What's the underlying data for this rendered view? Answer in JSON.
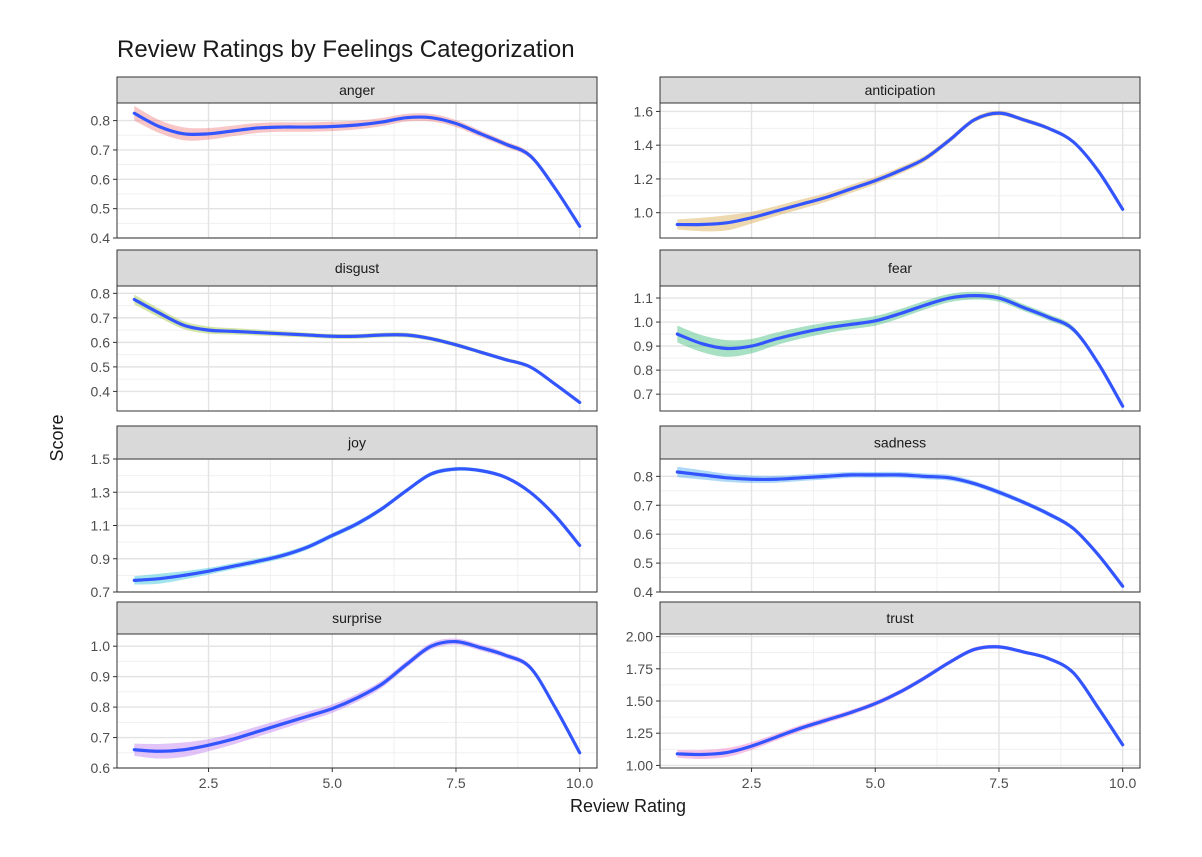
{
  "chart_data": {
    "type": "line",
    "title": "Review Ratings by Feelings Categorization",
    "xlabel": "Review Rating",
    "ylabel": "Score",
    "layout": "facet-wrap",
    "grid": true,
    "legend": "none",
    "x_ticks": [
      "2.5",
      "5.0",
      "7.5",
      "10.0"
    ],
    "xlim": [
      0.65,
      10.35
    ],
    "line_color": "#3355ff",
    "ribbon_opacity": 0.45,
    "panels": [
      {
        "name": "anger",
        "ribbon_color": "#f08080",
        "ylim": [
          0.4,
          0.86
        ],
        "y_ticks": [
          0.4,
          0.5,
          0.6,
          0.7,
          0.8
        ],
        "y_tick_labels": [
          "0.4",
          "0.5",
          "0.6",
          "0.7",
          "0.8"
        ],
        "x": [
          1,
          1.5,
          2,
          2.5,
          3,
          3.5,
          4,
          4.5,
          5,
          5.5,
          6,
          6.5,
          7,
          7.5,
          8,
          8.5,
          9,
          9.5,
          10
        ],
        "y": [
          0.825,
          0.78,
          0.755,
          0.755,
          0.765,
          0.775,
          0.778,
          0.778,
          0.78,
          0.785,
          0.795,
          0.81,
          0.81,
          0.79,
          0.755,
          0.72,
          0.68,
          0.57,
          0.44
        ],
        "band": [
          0.025,
          0.022,
          0.022,
          0.02,
          0.018,
          0.017,
          0.016,
          0.016,
          0.016,
          0.015,
          0.014,
          0.013,
          0.013,
          0.012,
          0.011,
          0.01,
          0.009,
          0.006,
          0.004
        ]
      },
      {
        "name": "anticipation",
        "ribbon_color": "#d9a84e",
        "ylim": [
          0.85,
          1.65
        ],
        "y_ticks": [
          1.0,
          1.2,
          1.4,
          1.6
        ],
        "y_tick_labels": [
          "1.0",
          "1.2",
          "1.4",
          "1.6"
        ],
        "x": [
          1,
          1.5,
          2,
          2.5,
          3,
          3.5,
          4,
          4.5,
          5,
          5.5,
          6,
          6.5,
          7,
          7.5,
          8,
          8.5,
          9,
          9.5,
          10
        ],
        "y": [
          0.93,
          0.93,
          0.94,
          0.97,
          1.01,
          1.05,
          1.09,
          1.14,
          1.19,
          1.25,
          1.32,
          1.43,
          1.55,
          1.59,
          1.55,
          1.5,
          1.42,
          1.25,
          1.02
        ],
        "band": [
          0.03,
          0.04,
          0.045,
          0.035,
          0.03,
          0.028,
          0.026,
          0.024,
          0.022,
          0.02,
          0.018,
          0.016,
          0.015,
          0.014,
          0.013,
          0.012,
          0.01,
          0.008,
          0.006
        ]
      },
      {
        "name": "disgust",
        "ribbon_color": "#9fc73f",
        "ylim": [
          0.32,
          0.83
        ],
        "y_ticks": [
          0.4,
          0.5,
          0.6,
          0.7,
          0.8
        ],
        "y_tick_labels": [
          "0.4",
          "0.5",
          "0.6",
          "0.7",
          "0.8"
        ],
        "x": [
          1,
          1.5,
          2,
          2.5,
          3,
          3.5,
          4,
          4.5,
          5,
          5.5,
          6,
          6.5,
          7,
          7.5,
          8,
          8.5,
          9,
          9.5,
          10
        ],
        "y": [
          0.775,
          0.72,
          0.67,
          0.65,
          0.645,
          0.64,
          0.635,
          0.63,
          0.625,
          0.625,
          0.63,
          0.63,
          0.615,
          0.59,
          0.56,
          0.53,
          0.5,
          0.43,
          0.355
        ],
        "band": [
          0.02,
          0.018,
          0.016,
          0.015,
          0.013,
          0.012,
          0.011,
          0.01,
          0.01,
          0.01,
          0.01,
          0.01,
          0.009,
          0.009,
          0.008,
          0.008,
          0.007,
          0.005,
          0.004
        ]
      },
      {
        "name": "fear",
        "ribbon_color": "#3dbb7a",
        "ylim": [
          0.63,
          1.15
        ],
        "y_ticks": [
          0.7,
          0.8,
          0.9,
          1.0,
          1.1
        ],
        "y_tick_labels": [
          "0.7",
          "0.8",
          "0.9",
          "1.0",
          "1.1"
        ],
        "x": [
          1,
          1.5,
          2,
          2.5,
          3,
          3.5,
          4,
          4.5,
          5,
          5.5,
          6,
          6.5,
          7,
          7.5,
          8,
          8.5,
          9,
          9.5,
          10
        ],
        "y": [
          0.95,
          0.91,
          0.89,
          0.9,
          0.93,
          0.955,
          0.975,
          0.99,
          1.005,
          1.035,
          1.07,
          1.1,
          1.11,
          1.1,
          1.06,
          1.02,
          0.97,
          0.83,
          0.65
        ],
        "band": [
          0.035,
          0.035,
          0.035,
          0.03,
          0.026,
          0.024,
          0.022,
          0.02,
          0.02,
          0.019,
          0.018,
          0.017,
          0.016,
          0.015,
          0.014,
          0.013,
          0.012,
          0.008,
          0.006
        ]
      },
      {
        "name": "joy",
        "ribbon_color": "#2ec4d6",
        "ylim": [
          0.7,
          1.5
        ],
        "y_ticks": [
          0.7,
          0.9,
          1.1,
          1.3,
          1.5
        ],
        "y_tick_labels": [
          "0.7",
          "0.9",
          "1.1",
          "1.3",
          "1.5"
        ],
        "x": [
          1,
          1.5,
          2,
          2.5,
          3,
          3.5,
          4,
          4.5,
          5,
          5.5,
          6,
          6.5,
          7,
          7.5,
          8,
          8.5,
          9,
          9.5,
          10
        ],
        "y": [
          0.77,
          0.78,
          0.8,
          0.825,
          0.855,
          0.885,
          0.92,
          0.97,
          1.04,
          1.11,
          1.2,
          1.31,
          1.41,
          1.44,
          1.43,
          1.39,
          1.3,
          1.16,
          0.98
        ],
        "band": [
          0.025,
          0.03,
          0.025,
          0.02,
          0.018,
          0.017,
          0.016,
          0.015,
          0.015,
          0.015,
          0.014,
          0.013,
          0.013,
          0.012,
          0.011,
          0.01,
          0.009,
          0.007,
          0.005
        ]
      },
      {
        "name": "sadness",
        "ribbon_color": "#4aa8f0",
        "ylim": [
          0.4,
          0.86
        ],
        "y_ticks": [
          0.4,
          0.5,
          0.6,
          0.7,
          0.8
        ],
        "y_tick_labels": [
          "0.4",
          "0.5",
          "0.6",
          "0.7",
          "0.8"
        ],
        "x": [
          1,
          1.5,
          2,
          2.5,
          3,
          3.5,
          4,
          4.5,
          5,
          5.5,
          6,
          6.5,
          7,
          7.5,
          8,
          8.5,
          9,
          9.5,
          10
        ],
        "y": [
          0.815,
          0.805,
          0.795,
          0.79,
          0.79,
          0.795,
          0.8,
          0.805,
          0.805,
          0.805,
          0.8,
          0.795,
          0.775,
          0.745,
          0.71,
          0.67,
          0.62,
          0.53,
          0.42
        ],
        "band": [
          0.018,
          0.016,
          0.014,
          0.013,
          0.012,
          0.011,
          0.011,
          0.01,
          0.01,
          0.01,
          0.01,
          0.01,
          0.009,
          0.009,
          0.008,
          0.008,
          0.007,
          0.005,
          0.004
        ]
      },
      {
        "name": "surprise",
        "ribbon_color": "#c07cf0",
        "ylim": [
          0.6,
          1.04
        ],
        "y_ticks": [
          0.6,
          0.7,
          0.8,
          0.9,
          1.0
        ],
        "y_tick_labels": [
          "0.6",
          "0.7",
          "0.8",
          "0.9",
          "1.0"
        ],
        "x": [
          1,
          1.5,
          2,
          2.5,
          3,
          3.5,
          4,
          4.5,
          5,
          5.5,
          6,
          6.5,
          7,
          7.5,
          8,
          8.5,
          9,
          9.5,
          10
        ],
        "y": [
          0.66,
          0.655,
          0.66,
          0.675,
          0.695,
          0.72,
          0.745,
          0.77,
          0.795,
          0.83,
          0.875,
          0.94,
          1.0,
          1.015,
          0.995,
          0.97,
          0.93,
          0.8,
          0.65
        ],
        "band": [
          0.02,
          0.024,
          0.024,
          0.02,
          0.018,
          0.017,
          0.016,
          0.015,
          0.014,
          0.013,
          0.012,
          0.011,
          0.011,
          0.01,
          0.01,
          0.009,
          0.008,
          0.006,
          0.004
        ]
      },
      {
        "name": "trust",
        "ribbon_color": "#f077c6",
        "ylim": [
          0.98,
          2.02
        ],
        "y_ticks": [
          1.0,
          1.25,
          1.5,
          1.75,
          2.0
        ],
        "y_tick_labels": [
          "1.00",
          "1.25",
          "1.50",
          "1.75",
          "2.00"
        ],
        "x": [
          1,
          1.5,
          2,
          2.5,
          3,
          3.5,
          4,
          4.5,
          5,
          5.5,
          6,
          6.5,
          7,
          7.5,
          8,
          8.5,
          9,
          9.5,
          10
        ],
        "y": [
          1.09,
          1.085,
          1.1,
          1.15,
          1.22,
          1.29,
          1.35,
          1.41,
          1.48,
          1.57,
          1.68,
          1.8,
          1.9,
          1.92,
          1.88,
          1.83,
          1.72,
          1.45,
          1.16
        ],
        "band": [
          0.03,
          0.035,
          0.035,
          0.03,
          0.027,
          0.025,
          0.023,
          0.021,
          0.02,
          0.019,
          0.018,
          0.017,
          0.016,
          0.015,
          0.014,
          0.013,
          0.012,
          0.009,
          0.006
        ]
      }
    ]
  }
}
